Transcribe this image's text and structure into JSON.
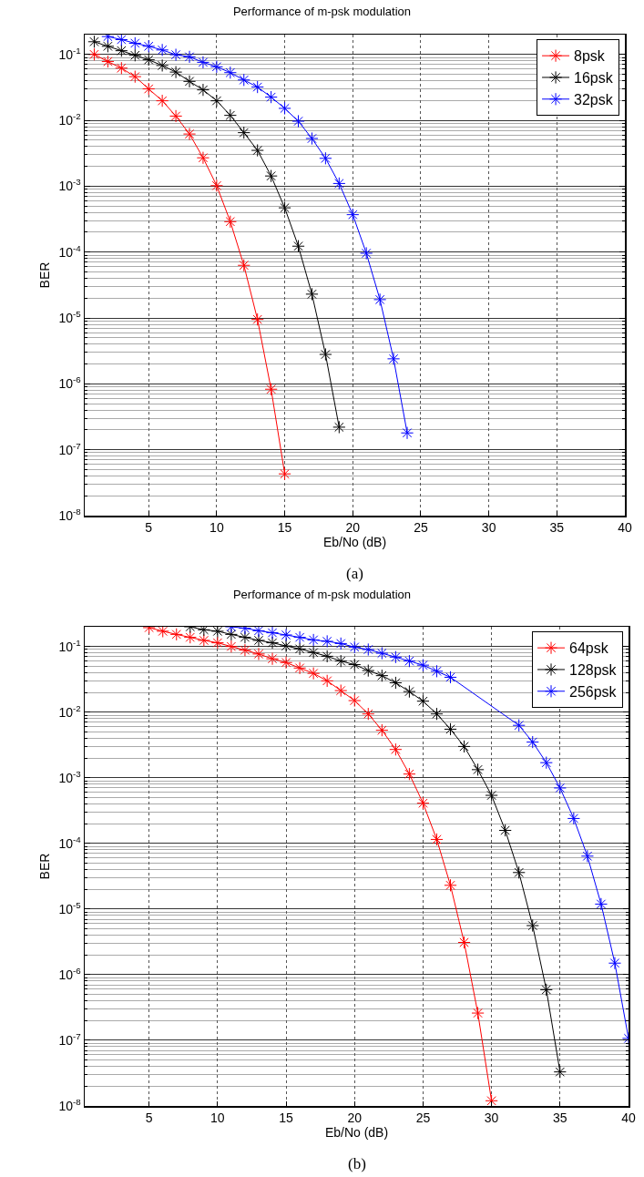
{
  "chart_data": [
    {
      "type": "line",
      "title": "Performance of m-psk modulation",
      "xlabel": "Eb/No (dB)",
      "ylabel": "BER",
      "annotations": [
        "(a)"
      ],
      "log": "y",
      "grid": true,
      "legend": "top right",
      "marker": "cross",
      "line_style": "solid",
      "xlim": [
        0.3,
        40
      ],
      "xticks": [
        5,
        10,
        15,
        20,
        25,
        30,
        35,
        40
      ],
      "ylim": [
        1e-08,
        0.2
      ],
      "yticks": [
        {
          "value": 0.1,
          "label": "10$^{-1}$"
        },
        {
          "value": 0.01,
          "label": "10$^{-2}$"
        },
        {
          "value": 0.001,
          "label": "10$^{-3}$"
        },
        {
          "value": 0.0001,
          "label": "10$^{-4}$"
        },
        {
          "value": 1e-05,
          "label": "10$^{-5}$"
        },
        {
          "value": 1e-06,
          "label": "10$^{-6}$"
        },
        {
          "value": 1e-07,
          "label": "10$^{-7}$"
        },
        {
          "value": 1e-08,
          "label": "10$^{-8}$"
        }
      ],
      "series": [
        {
          "name": "8psk",
          "color": "#ff0000",
          "x": [
            1,
            2,
            3,
            4,
            5,
            6,
            7,
            8,
            9,
            10,
            11,
            12,
            13,
            14,
            15
          ],
          "values": [
            0.1,
            0.078,
            0.062,
            0.046,
            0.03,
            0.0198,
            0.0116,
            0.0062,
            0.0027,
            0.00102,
            0.00029,
            6.3e-05,
            9.5e-06,
            8.3e-07,
            4.3e-08
          ]
        },
        {
          "name": "16psk",
          "color": "#000000",
          "x": [
            1,
            2,
            3,
            4,
            5,
            6,
            7,
            8,
            9,
            10,
            11,
            12,
            13,
            14,
            15,
            16,
            17,
            18,
            19
          ],
          "values": [
            0.156,
            0.133,
            0.114,
            0.097,
            0.083,
            0.068,
            0.054,
            0.039,
            0.029,
            0.0198,
            0.0119,
            0.0065,
            0.0035,
            0.00143,
            0.00047,
            0.000123,
            2.3e-05,
            2.8e-06,
            2.2e-07
          ]
        },
        {
          "name": "32psk",
          "color": "#0000ff",
          "x": [
            2,
            3,
            4,
            5,
            6,
            7,
            8,
            9,
            10,
            11,
            12,
            13,
            14,
            15,
            16,
            17,
            18,
            19,
            20,
            21,
            22,
            23,
            24
          ],
          "values": [
            0.187,
            0.168,
            0.148,
            0.133,
            0.117,
            0.099,
            0.092,
            0.076,
            0.065,
            0.053,
            0.041,
            0.032,
            0.0225,
            0.0152,
            0.0097,
            0.0053,
            0.00265,
            0.0011,
            0.00037,
            9.6e-05,
            1.9e-05,
            2.4e-06,
            1.8e-07
          ]
        }
      ]
    },
    {
      "type": "line",
      "title": "Performance of m-psk modulation",
      "xlabel": "Eb/No (dB)",
      "ylabel": "BER",
      "annotations": [
        "(b)"
      ],
      "log": "y",
      "grid": true,
      "legend": "top right",
      "marker": "cross",
      "line_style": "solid",
      "xlim": [
        0.3,
        40
      ],
      "xticks": [
        5,
        10,
        15,
        20,
        25,
        30,
        35,
        40
      ],
      "ylim": [
        1e-08,
        0.2
      ],
      "yticks": [
        {
          "value": 0.1,
          "label": "10$^{-1}$"
        },
        {
          "value": 0.01,
          "label": "10$^{-2}$"
        },
        {
          "value": 0.001,
          "label": "10$^{-3}$"
        },
        {
          "value": 0.0001,
          "label": "10$^{-4}$"
        },
        {
          "value": 1e-05,
          "label": "10$^{-5}$"
        },
        {
          "value": 1e-06,
          "label": "10$^{-6}$"
        },
        {
          "value": 1e-07,
          "label": "10$^{-7}$"
        },
        {
          "value": 1e-08,
          "label": "10$^{-8}$"
        }
      ],
      "series": [
        {
          "name": "64psk",
          "color": "#ff0000",
          "x": [
            5,
            6,
            7,
            8,
            9,
            10,
            11,
            12,
            13,
            14,
            15,
            16,
            17,
            18,
            19,
            20,
            21,
            22,
            23,
            24,
            25,
            26,
            27,
            28,
            29,
            30
          ],
          "values": [
            0.194,
            0.171,
            0.153,
            0.138,
            0.124,
            0.114,
            0.1,
            0.088,
            0.077,
            0.065,
            0.057,
            0.047,
            0.039,
            0.03,
            0.0213,
            0.015,
            0.0094,
            0.0053,
            0.0027,
            0.00114,
            0.00041,
            0.000115,
            2.3e-05,
            3.1e-06,
            2.6e-07,
            1.2e-08
          ]
        },
        {
          "name": "128psk",
          "color": "#000000",
          "x": [
            8,
            9,
            10,
            11,
            12,
            13,
            14,
            15,
            16,
            17,
            18,
            19,
            20,
            21,
            22,
            23,
            24,
            25,
            26,
            27,
            28,
            29,
            30,
            31,
            32,
            33,
            34,
            35
          ],
          "values": [
            0.2,
            0.18,
            0.171,
            0.153,
            0.138,
            0.124,
            0.114,
            0.102,
            0.092,
            0.081,
            0.071,
            0.06,
            0.053,
            0.043,
            0.036,
            0.028,
            0.0206,
            0.0147,
            0.0094,
            0.0055,
            0.003,
            0.00133,
            0.00054,
            0.000158,
            3.6e-05,
            5.6e-06,
            5.9e-07,
            3.3e-08
          ]
        },
        {
          "name": "256psk",
          "color": "#0000ff",
          "x": [
            11,
            12,
            13,
            14,
            15,
            16,
            17,
            18,
            19,
            20,
            21,
            22,
            23,
            24,
            25,
            26,
            27,
            28,
            29,
            30,
            31,
            32,
            33,
            34,
            35,
            36,
            37,
            38,
            39,
            40
          ],
          "values": [
            0.2,
            0.19,
            0.174,
            0.162,
            0.15,
            0.138,
            0.126,
            0.12,
            0.111,
            0.098,
            0.09,
            0.079,
            0.069,
            0.06,
            0.052,
            0.042,
            0.034,
            null,
            null,
            null,
            null,
            0.0063,
            0.0035,
            0.0017,
            0.0007,
            0.00024,
            6.4e-05,
            1.19e-05,
            1.5e-06,
            1.07e-07
          ]
        }
      ]
    }
  ]
}
